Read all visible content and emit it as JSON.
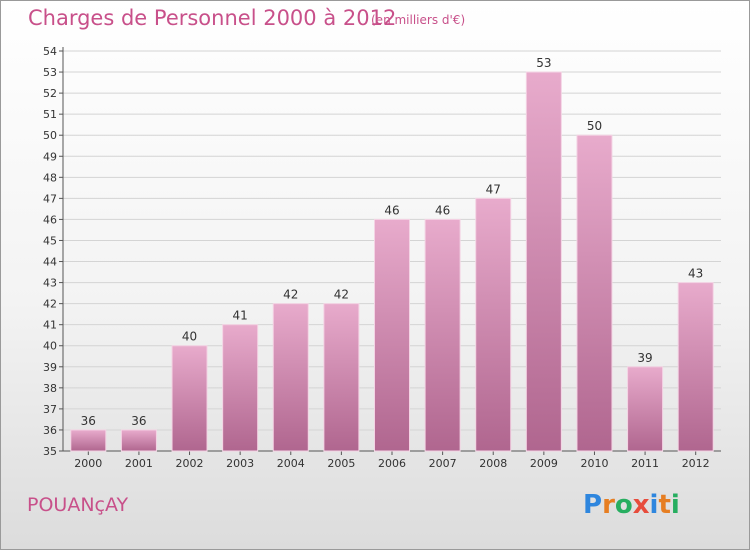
{
  "header": {
    "title": "Charges de Personnel 2000 à 2012",
    "subtitle": "(en milliers d'€)"
  },
  "footer": {
    "town": "POUANçAY",
    "logo_letters": [
      "P",
      "r",
      "o",
      "x",
      "i",
      "t",
      "i"
    ]
  },
  "colors": {
    "title": "#c8508a",
    "bar_light": "#e8abcc",
    "bar_dark": "#b0668f",
    "logo": [
      "#2e86de",
      "#e67e22",
      "#27ae60",
      "#e74c3c",
      "#2e86de",
      "#e67e22",
      "#27ae60"
    ]
  },
  "chart_data": {
    "type": "bar",
    "title": "Charges de Personnel 2000 à 2012",
    "xlabel": "",
    "ylabel": "",
    "categories": [
      "2000",
      "2001",
      "2002",
      "2003",
      "2004",
      "2005",
      "2006",
      "2007",
      "2008",
      "2009",
      "2010",
      "2011",
      "2012"
    ],
    "values": [
      36,
      36,
      40,
      41,
      42,
      42,
      46,
      46,
      47,
      53,
      50,
      39,
      43
    ],
    "ylim": [
      35,
      54
    ],
    "yticks": [
      35,
      36,
      37,
      38,
      39,
      40,
      41,
      42,
      43,
      44,
      45,
      46,
      47,
      48,
      49,
      50,
      51,
      52,
      53,
      54
    ],
    "grid": true,
    "legend": "none"
  }
}
